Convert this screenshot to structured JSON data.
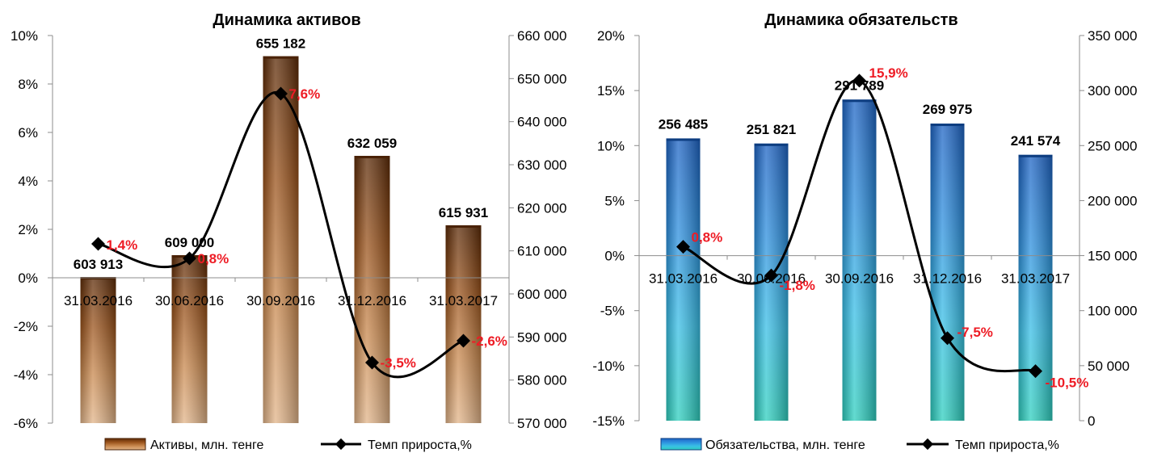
{
  "chart_data": [
    {
      "type": "bar",
      "title": "Динамика активов",
      "categories": [
        "31.03.2016",
        "30.06.2016",
        "30.09.2016",
        "31.12.2016",
        "31.03.2017"
      ],
      "series": [
        {
          "name": "Активы, млн. тенге",
          "axis": "right",
          "values": [
            603913,
            609000,
            655182,
            632059,
            615931
          ],
          "value_labels": [
            "603 913",
            "609 000",
            "655 182",
            "632 059",
            "615 931"
          ],
          "color": "#a35a1d"
        },
        {
          "name": "Темп прироста,%",
          "type": "line",
          "axis": "left",
          "values": [
            1.4,
            0.8,
            7.6,
            -3.5,
            -2.6
          ],
          "value_labels": [
            "1,4%",
            "0,8%",
            "7,6%",
            "-3,5%",
            "-2,6%"
          ],
          "color": "#000000",
          "label_color": "#ee1c25"
        }
      ],
      "y_left": {
        "range": [
          -6,
          10
        ],
        "ticks": [
          -6,
          -4,
          -2,
          0,
          2,
          4,
          6,
          8,
          10
        ],
        "tick_labels": [
          "-6%",
          "-4%",
          "-2%",
          "0%",
          "2%",
          "4%",
          "6%",
          "8%",
          "10%"
        ]
      },
      "y_right": {
        "range": [
          570000,
          660000
        ],
        "ticks": [
          570000,
          580000,
          590000,
          600000,
          610000,
          620000,
          630000,
          640000,
          650000,
          660000
        ],
        "tick_labels": [
          "570 000",
          "580 000",
          "590 000",
          "600 000",
          "610 000",
          "620 000",
          "630 000",
          "640 000",
          "650 000",
          "660 000"
        ]
      },
      "legend": "bottom",
      "grid": false
    },
    {
      "type": "bar",
      "title": "Динамика обязательств",
      "categories": [
        "31.03.2016",
        "30.06.2016",
        "30.09.2016",
        "31.12.2016",
        "31.03.2017"
      ],
      "series": [
        {
          "name": "Обязательства, млн. тенге",
          "axis": "right",
          "values": [
            256485,
            251821,
            291789,
            269975,
            241574
          ],
          "value_labels": [
            "256 485",
            "251 821",
            "291 789",
            "269 975",
            "241 574"
          ],
          "color": "#1e6fd0"
        },
        {
          "name": "Темп прироста,%",
          "type": "line",
          "axis": "left",
          "values": [
            0.8,
            -1.8,
            15.9,
            -7.5,
            -10.5
          ],
          "value_labels": [
            "0,8%",
            "-1,8%",
            "15,9%",
            "-7,5%",
            "-10,5%"
          ],
          "color": "#000000",
          "label_color": "#ee1c25"
        }
      ],
      "y_left": {
        "range": [
          -15,
          20
        ],
        "ticks": [
          -15,
          -10,
          -5,
          0,
          5,
          10,
          15,
          20
        ],
        "tick_labels": [
          "-15%",
          "-10%",
          "-5%",
          "0%",
          "5%",
          "10%",
          "15%",
          "20%"
        ]
      },
      "y_right": {
        "range": [
          0,
          350000
        ],
        "ticks": [
          0,
          50000,
          100000,
          150000,
          200000,
          250000,
          300000,
          350000
        ],
        "tick_labels": [
          "0",
          "50 000",
          "100 000",
          "150 000",
          "200 000",
          "250 000",
          "300 000",
          "350 000"
        ]
      },
      "legend": "bottom",
      "grid": false
    }
  ]
}
